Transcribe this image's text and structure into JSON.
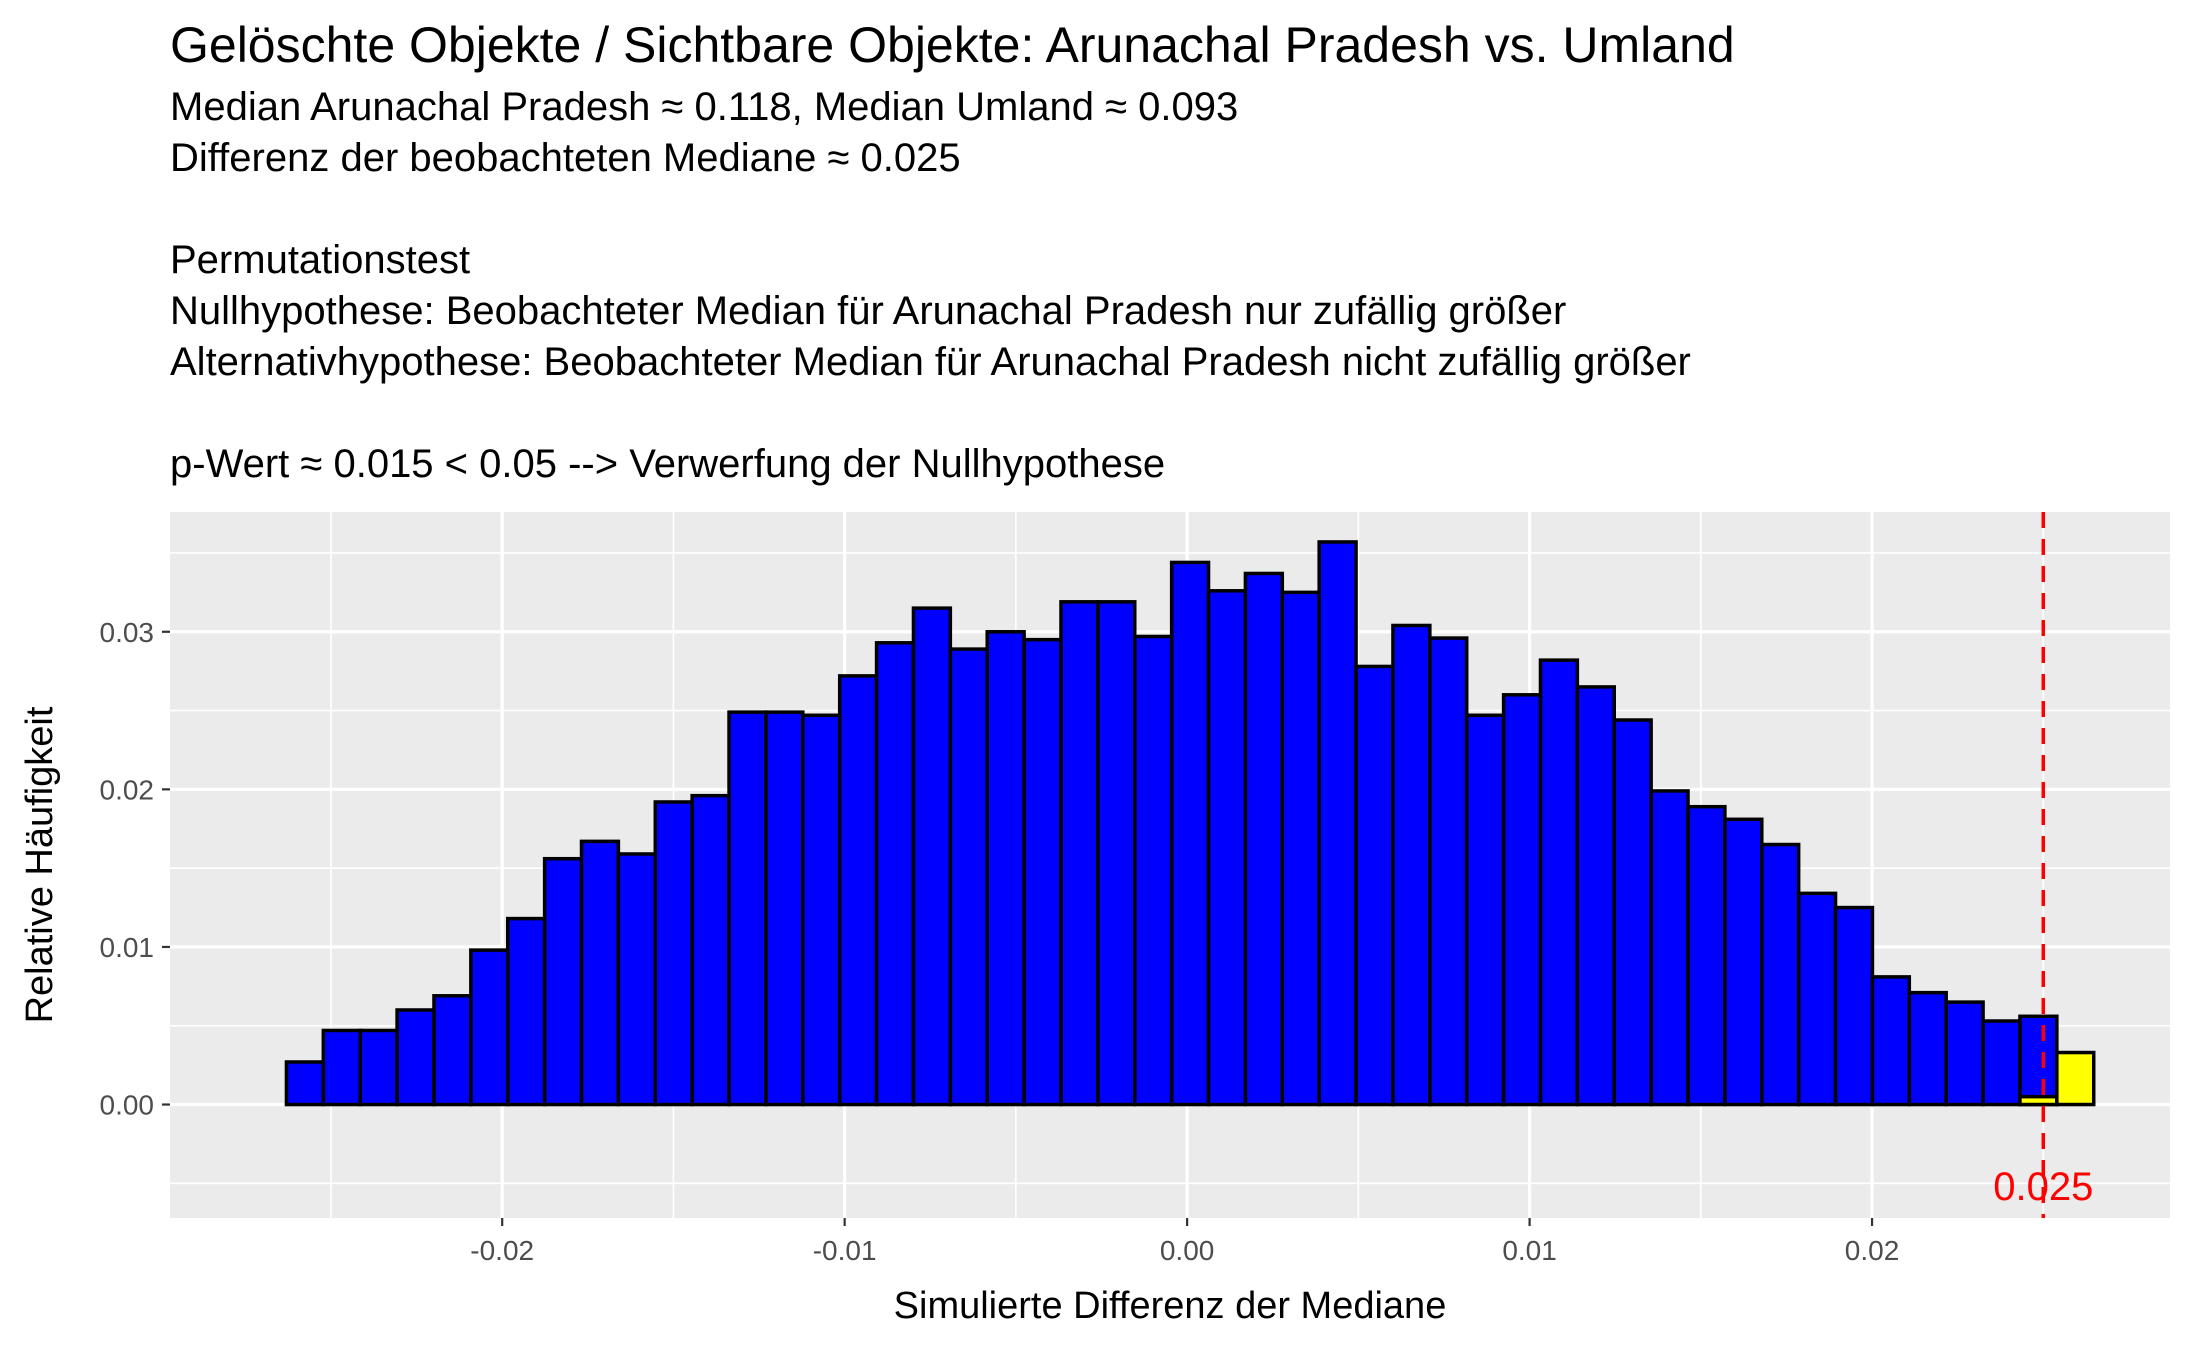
{
  "colors": {
    "panel_background": "#EBEBEB",
    "grid": "#FFFFFF",
    "bar_fill": "#0000FF",
    "tail_fill": "#FFFF00",
    "bar_outline": "#000000",
    "reference_line": "#FF0000"
  },
  "chart_data": {
    "type": "bar",
    "title": "Gelöschte Objekte / Sichtbare Objekte: Arunachal Pradesh vs. Umland",
    "subtitle": "Median Arunachal Pradesh ≈ 0.118, Median Umland ≈ 0.093\nDifferenz der beobachteten Mediane ≈ 0.025\n\nPermutationstest\nNullhypothese: Beobachteter Median für Arunachal Pradesh nur zufällig größer\nAlternativhypothese: Beobachteter Median für Arunachal Pradesh nicht zufällig größer\n\np-Wert ≈ 0.015 < 0.05 --> Verwerfung der Nullhypothese",
    "xlabel": "Simulierte Differenz der Mediane",
    "ylabel": "Relative Häufigkeit",
    "xlim": [
      -0.0297,
      0.0287
    ],
    "ylim": [
      -0.0072,
      0.0376
    ],
    "x_ticks": [
      -0.02,
      -0.01,
      0.0,
      0.01,
      0.02
    ],
    "x_tick_labels": [
      "-0.02",
      "-0.01",
      "0.00",
      "0.01",
      "0.02"
    ],
    "y_ticks": [
      0.0,
      0.01,
      0.02,
      0.03
    ],
    "y_tick_labels": [
      "0.00",
      "0.01",
      "0.02",
      "0.03"
    ],
    "grid": true,
    "bin_start": -0.0263,
    "bin_width": 0.001077,
    "series": [
      {
        "values": [
          0.0027,
          0.0047,
          0.0047,
          0.006,
          0.0069,
          0.0098,
          0.0118,
          0.0156,
          0.0167,
          0.0159,
          0.0192,
          0.0196,
          0.0249,
          0.0249,
          0.0247,
          0.0272,
          0.0293,
          0.0315,
          0.0289,
          0.03,
          0.0295,
          0.0319,
          0.0319,
          0.0297,
          0.0344,
          0.0326,
          0.0337,
          0.0325,
          0.0357,
          0.0278,
          0.0304,
          0.0296,
          0.0247,
          0.026,
          0.0282,
          0.0265,
          0.0244,
          0.0199,
          0.0189,
          0.0181,
          0.0165,
          0.0134,
          0.0125,
          0.0081,
          0.0071,
          0.0065,
          0.0053,
          0.0056,
          0.0
        ]
      },
      {
        "values": [
          0,
          0,
          0,
          0,
          0,
          0,
          0,
          0,
          0,
          0,
          0,
          0,
          0,
          0,
          0,
          0,
          0,
          0,
          0,
          0,
          0,
          0,
          0,
          0,
          0,
          0,
          0,
          0,
          0,
          0,
          0,
          0,
          0,
          0,
          0,
          0,
          0,
          0,
          0,
          0,
          0,
          0,
          0,
          0,
          0,
          0,
          0,
          0.0005,
          0.0033
        ]
      }
    ],
    "reference_line": {
      "x": 0.025,
      "label": "0.025"
    }
  }
}
